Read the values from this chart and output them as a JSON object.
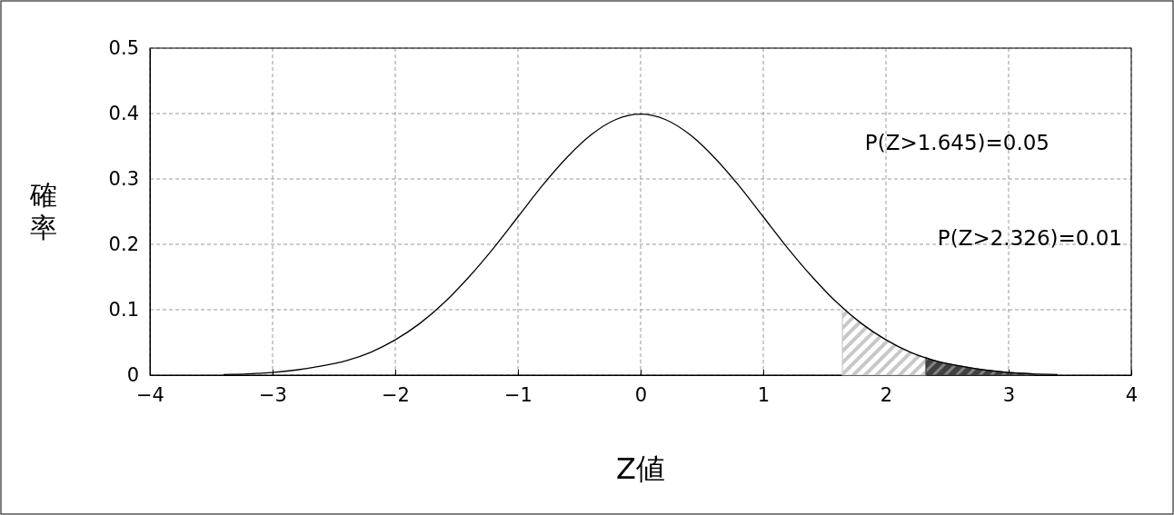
{
  "chart_data": {
    "type": "line",
    "xlabel": "Z値",
    "ylabel": "確率",
    "x": [
      -3.4,
      -3.2,
      -3.0,
      -2.8,
      -2.6,
      -2.4,
      -2.2,
      -2.0,
      -1.8,
      -1.6,
      -1.4,
      -1.2,
      -1.0,
      -0.8,
      -0.6,
      -0.4,
      -0.2,
      0,
      0.2,
      0.4,
      0.6,
      0.8,
      1.0,
      1.2,
      1.4,
      1.6,
      1.8,
      2.0,
      2.2,
      2.4,
      2.6,
      2.8,
      3.0,
      3.2,
      3.4
    ],
    "series": [
      {
        "color": "#000000",
        "values": [
          0.001,
          0.002,
          0.004,
          0.008,
          0.014,
          0.022,
          0.035,
          0.054,
          0.079,
          0.111,
          0.15,
          0.194,
          0.242,
          0.29,
          0.333,
          0.368,
          0.391,
          0.399,
          0.391,
          0.368,
          0.333,
          0.29,
          0.242,
          0.194,
          0.15,
          0.111,
          0.079,
          0.054,
          0.035,
          0.022,
          0.014,
          0.008,
          0.004,
          0.002,
          0.001
        ]
      },
      {
        "type": "area",
        "color": "#c8c8c8",
        "x": [
          1.645,
          1.8,
          2.0,
          2.2,
          2.326
        ],
        "values": [
          0.103,
          0.079,
          0.054,
          0.035,
          0.027
        ]
      },
      {
        "type": "area",
        "color": "#404040",
        "x": [
          2.326,
          2.4,
          2.6,
          2.8,
          3.0,
          3.2
        ],
        "values": [
          0.027,
          0.022,
          0.014,
          0.008,
          0.004,
          0.002
        ]
      }
    ],
    "xlim": [
      -4,
      4
    ],
    "xticks": [
      -4,
      -3,
      -2,
      -1,
      0,
      1,
      2,
      3,
      4
    ],
    "ylim": [
      0,
      0.5
    ],
    "yticks": [
      0,
      0.1,
      0.2,
      0.3,
      0.4,
      0.5
    ],
    "grid": true,
    "line_style": "solid",
    "annotations": [
      "P(Z>1.645)=0.05",
      "P(Z>2.326)=0.01"
    ]
  }
}
